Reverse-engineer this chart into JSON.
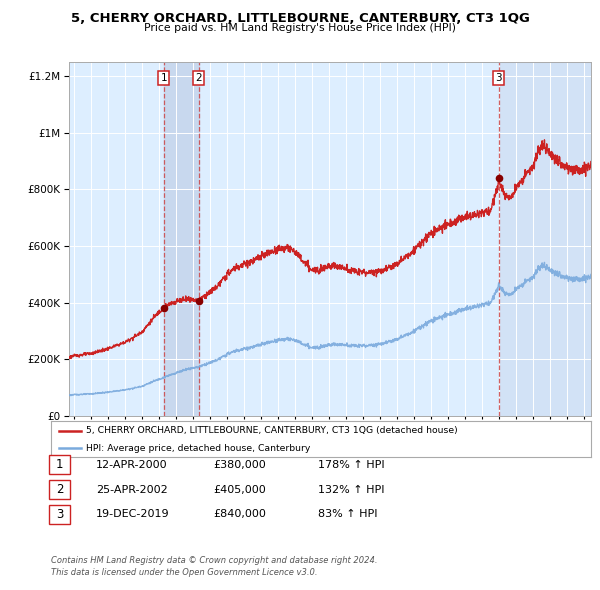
{
  "title": "5, CHERRY ORCHARD, LITTLEBOURNE, CANTERBURY, CT3 1QG",
  "subtitle": "Price paid vs. HM Land Registry's House Price Index (HPI)",
  "hpi_color": "#7aaadd",
  "price_color": "#cc2222",
  "bg_color": "#ffffff",
  "plot_bg_color": "#ddeeff",
  "grid_color": "#ffffff",
  "shade_color": "#c8d8ee",
  "sale_dates_num": [
    2000.278,
    2002.319,
    2019.964
  ],
  "sale_prices": [
    380000,
    405000,
    840000
  ],
  "sale_labels": [
    "1",
    "2",
    "3"
  ],
  "legend_line1": "5, CHERRY ORCHARD, LITTLEBOURNE, CANTERBURY, CT3 1QG (detached house)",
  "legend_line2": "HPI: Average price, detached house, Canterbury",
  "table_data": [
    [
      "1",
      "12-APR-2000",
      "£380,000",
      "178% ↑ HPI"
    ],
    [
      "2",
      "25-APR-2002",
      "£405,000",
      "132% ↑ HPI"
    ],
    [
      "3",
      "19-DEC-2019",
      "£840,000",
      "83% ↑ HPI"
    ]
  ],
  "footer": "Contains HM Land Registry data © Crown copyright and database right 2024.\nThis data is licensed under the Open Government Licence v3.0.",
  "ylim": [
    0,
    1250000
  ],
  "xlim_start": 1994.7,
  "xlim_end": 2025.4
}
